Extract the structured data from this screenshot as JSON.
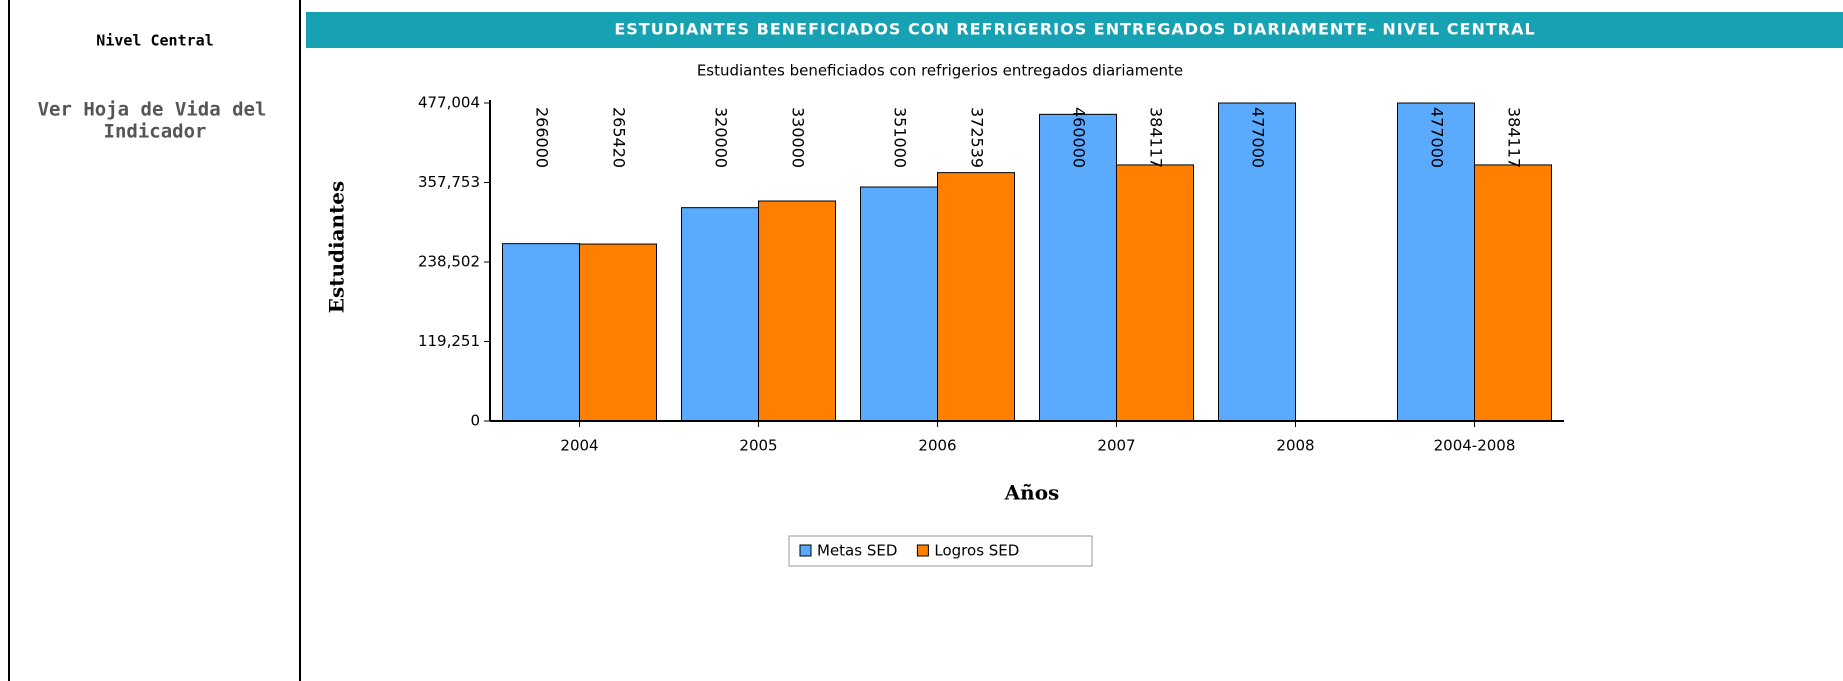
{
  "sidebar": {
    "section": "Nivel Central",
    "link_lines": [
      "Ver Hoja de Vida del",
      "Indicador"
    ]
  },
  "header": {
    "title": "ESTUDIANTES BENEFICIADOS CON REFRIGERIOS ENTREGADOS DIARIAMENTE- NIVEL CENTRAL"
  },
  "chart_data": {
    "type": "bar",
    "title": "Estudiantes beneficiados con refrigerios entregados diariamente",
    "x_label": "Años",
    "y_label": "Estudiantes",
    "categories": [
      "2004",
      "2005",
      "2006",
      "2007",
      "2008",
      "2004-2008"
    ],
    "series": [
      {
        "name": "Metas SED",
        "color": "#5aabff",
        "values": [
          266000,
          320000,
          351000,
          460000,
          477000,
          477000
        ]
      },
      {
        "name": "Logros SED",
        "color": "#ff7f00",
        "values": [
          265420,
          330000,
          372539,
          384117,
          null,
          384117
        ]
      }
    ],
    "ylim": [
      0,
      477004
    ],
    "yticks": [
      0,
      {
        "value": 119251,
        "label": "119,251"
      },
      {
        "value": 238502,
        "label": "238,502"
      },
      {
        "value": 357753,
        "label": "357,753"
      },
      {
        "value": 477004,
        "label": "477,004"
      }
    ],
    "grid": false,
    "legend": "bottom"
  }
}
